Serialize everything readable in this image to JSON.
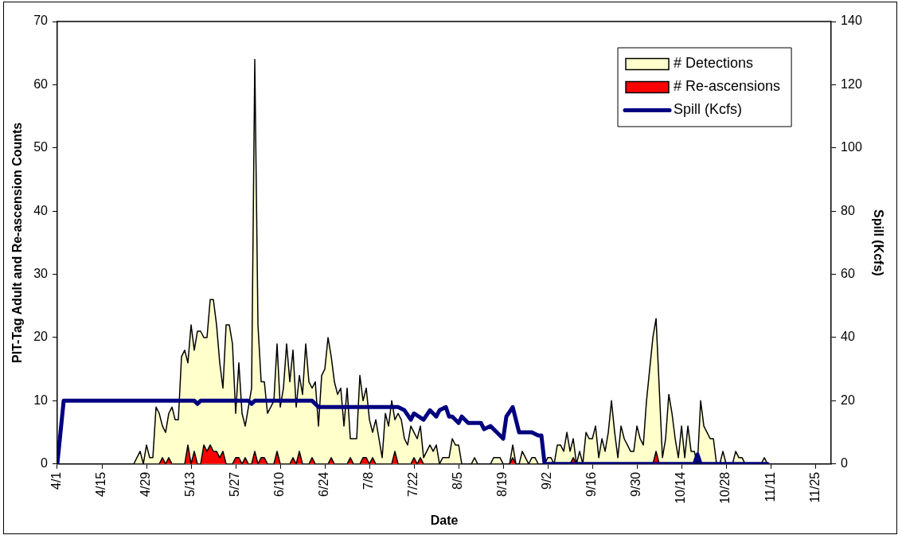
{
  "chart_data": {
    "type": "area",
    "xlabel": "Date",
    "ylabel": "PIT-Tag Adult and Re-ascension Counts",
    "y2label": "Spill (Kcfs)",
    "legend": "top right",
    "xlim": [
      "--04-01",
      "--11-30"
    ],
    "xticks": [
      {
        "value": "--04-01",
        "label": "4/1"
      },
      {
        "value": "--04-15",
        "label": "4/15"
      },
      {
        "value": "--04-29",
        "label": "4/29"
      },
      {
        "value": "--05-13",
        "label": "5/13"
      },
      {
        "value": "--05-27",
        "label": "5/27"
      },
      {
        "value": "--06-10",
        "label": "6/10"
      },
      {
        "value": "--06-24",
        "label": "6/24"
      },
      {
        "value": "--07-08",
        "label": "7/8"
      },
      {
        "value": "--07-22",
        "label": "7/22"
      },
      {
        "value": "--08-05",
        "label": "8/5"
      },
      {
        "value": "--08-19",
        "label": "8/19"
      },
      {
        "value": "--09-02",
        "label": "9/2"
      },
      {
        "value": "--09-16",
        "label": "9/16"
      },
      {
        "value": "--09-30",
        "label": "9/30"
      },
      {
        "value": "--10-14",
        "label": "10/14"
      },
      {
        "value": "--10-28",
        "label": "10/28"
      },
      {
        "value": "--11-11",
        "label": "11/11"
      },
      {
        "value": "--11-25",
        "label": "11/25"
      }
    ],
    "ylim": [
      0,
      70
    ],
    "yticks": [
      0,
      10,
      20,
      30,
      40,
      50,
      60,
      70
    ],
    "y2lim": [
      0,
      140
    ],
    "y2ticks": [
      0,
      20,
      40,
      60,
      80,
      100,
      120,
      140
    ],
    "series": [
      {
        "name": "# Detections",
        "color": "#ffffcc",
        "x": [
          "--04-01",
          "--04-25",
          "--04-27",
          "--04-28",
          "--04-29",
          "--04-30",
          "--05-01",
          "--05-02",
          "--05-03",
          "--05-04",
          "--05-05",
          "--05-06",
          "--05-07",
          "--05-08",
          "--05-09",
          "--05-10",
          "--05-11",
          "--05-12",
          "--05-13",
          "--05-14",
          "--05-15",
          "--05-16",
          "--05-17",
          "--05-18",
          "--05-19",
          "--05-20",
          "--05-21",
          "--05-22",
          "--05-23",
          "--05-24",
          "--05-25",
          "--05-26",
          "--05-27",
          "--05-28",
          "--05-29",
          "--05-30",
          "--05-31",
          "--06-01",
          "--06-02",
          "--06-03",
          "--06-04",
          "--06-05",
          "--06-06",
          "--06-07",
          "--06-08",
          "--06-09",
          "--06-10",
          "--06-11",
          "--06-12",
          "--06-13",
          "--06-14",
          "--06-15",
          "--06-16",
          "--06-17",
          "--06-18",
          "--06-19",
          "--06-20",
          "--06-21",
          "--06-22",
          "--06-23",
          "--06-24",
          "--06-25",
          "--06-26",
          "--06-27",
          "--06-28",
          "--06-29",
          "--06-30",
          "--07-01",
          "--07-02",
          "--07-03",
          "--07-04",
          "--07-05",
          "--07-06",
          "--07-07",
          "--07-08",
          "--07-09",
          "--07-10",
          "--07-11",
          "--07-12",
          "--07-13",
          "--07-14",
          "--07-15",
          "--07-16",
          "--07-17",
          "--07-18",
          "--07-19",
          "--07-20",
          "--07-21",
          "--07-22",
          "--07-23",
          "--07-24",
          "--07-25",
          "--07-26",
          "--07-27",
          "--07-28",
          "--07-29",
          "--07-30",
          "--07-31",
          "--08-01",
          "--08-02",
          "--08-03",
          "--08-04",
          "--08-05",
          "--08-06",
          "--08-09",
          "--08-10",
          "--08-11",
          "--08-15",
          "--08-16",
          "--08-17",
          "--08-18",
          "--08-19",
          "--08-21",
          "--08-22",
          "--08-23",
          "--08-24",
          "--08-25",
          "--08-26",
          "--08-27",
          "--08-28",
          "--08-29",
          "--08-30",
          "--09-01",
          "--09-02",
          "--09-03",
          "--09-04",
          "--09-05",
          "--09-06",
          "--09-07",
          "--09-08",
          "--09-09",
          "--09-10",
          "--09-11",
          "--09-12",
          "--09-13",
          "--09-14",
          "--09-15",
          "--09-16",
          "--09-17",
          "--09-18",
          "--09-19",
          "--09-20",
          "--09-21",
          "--09-22",
          "--09-23",
          "--09-24",
          "--09-25",
          "--09-26",
          "--09-27",
          "--09-28",
          "--09-29",
          "--09-30",
          "--10-01",
          "--10-02",
          "--10-03",
          "--10-04",
          "--10-05",
          "--10-06",
          "--10-07",
          "--10-08",
          "--10-09",
          "--10-10",
          "--10-11",
          "--10-12",
          "--10-13",
          "--10-14",
          "--10-15",
          "--10-16",
          "--10-17",
          "--10-18",
          "--10-19",
          "--10-20",
          "--10-21",
          "--10-22",
          "--10-23",
          "--10-24",
          "--10-25",
          "--10-26",
          "--10-27",
          "--10-28",
          "--10-30",
          "--10-31",
          "--11-01",
          "--11-02",
          "--11-03",
          "--11-08",
          "--11-09",
          "--11-10"
        ],
        "values": [
          0,
          0,
          2,
          0,
          3,
          1,
          1,
          9,
          8,
          6,
          5,
          8,
          9,
          7,
          7,
          17,
          18,
          16,
          22,
          18,
          21,
          21,
          20,
          20,
          26,
          26,
          22,
          16,
          12,
          22,
          22,
          19,
          8,
          16,
          8,
          6,
          9,
          12,
          64,
          22,
          13,
          13,
          8,
          9,
          10,
          19,
          9,
          12,
          19,
          13,
          18,
          9,
          14,
          11,
          19,
          13,
          12,
          13,
          6,
          14,
          15,
          20,
          17,
          13,
          11,
          12,
          6,
          12,
          4,
          4,
          4,
          14,
          10,
          12,
          7,
          5,
          7,
          4,
          1,
          8,
          6,
          10,
          7,
          8,
          7,
          4,
          3,
          6,
          5,
          4,
          6,
          1,
          2,
          3,
          2,
          3,
          0,
          1,
          1,
          1,
          4,
          3,
          3,
          0,
          0,
          1,
          0,
          0,
          1,
          1,
          1,
          0,
          0,
          3,
          0,
          0,
          2,
          1,
          0,
          1,
          1,
          0,
          0,
          1,
          1,
          0,
          3,
          3,
          2,
          5,
          2,
          4,
          0,
          2,
          0,
          5,
          4,
          4,
          6,
          1,
          4,
          2,
          5,
          10,
          5,
          1,
          6,
          4,
          3,
          2,
          2,
          6,
          4,
          3,
          10,
          15,
          20,
          23,
          12,
          1,
          4,
          11,
          8,
          4,
          1,
          6,
          1,
          6,
          2,
          2,
          0,
          10,
          6,
          5,
          4,
          4,
          0,
          0,
          2,
          0,
          0,
          2,
          1,
          1,
          0,
          0,
          1,
          0
        ]
      },
      {
        "name": "# Re-ascensions",
        "color": "#ff0000",
        "x": [
          "--04-01",
          "--05-03",
          "--05-04",
          "--05-05",
          "--05-06",
          "--05-07",
          "--05-11",
          "--05-12",
          "--05-13",
          "--05-14",
          "--05-15",
          "--05-16",
          "--05-17",
          "--05-18",
          "--05-19",
          "--05-20",
          "--05-21",
          "--05-22",
          "--05-23",
          "--05-24",
          "--05-26",
          "--05-27",
          "--05-28",
          "--05-29",
          "--05-30",
          "--05-31",
          "--06-01",
          "--06-02",
          "--06-03",
          "--06-04",
          "--06-05",
          "--06-06",
          "--06-08",
          "--06-09",
          "--06-10",
          "--06-13",
          "--06-14",
          "--06-15",
          "--06-16",
          "--06-17",
          "--06-19",
          "--06-20",
          "--06-21",
          "--06-25",
          "--06-26",
          "--06-27",
          "--07-01",
          "--07-02",
          "--07-03",
          "--07-05",
          "--07-06",
          "--07-07",
          "--07-08",
          "--07-09",
          "--07-10",
          "--07-15",
          "--07-16",
          "--07-17",
          "--07-21",
          "--07-22",
          "--07-23",
          "--07-24",
          "--07-25",
          "--08-21",
          "--08-22",
          "--08-23",
          "--09-09",
          "--09-10",
          "--09-11",
          "--10-05",
          "--10-06",
          "--10-07",
          "--11-10"
        ],
        "values": [
          0,
          0,
          1,
          0,
          1,
          0,
          0,
          3,
          0,
          2,
          0,
          0,
          3,
          2,
          3,
          2,
          2,
          1,
          2,
          0,
          0,
          1,
          1,
          0,
          1,
          0,
          0,
          2,
          0,
          1,
          1,
          0,
          0,
          2,
          0,
          0,
          1,
          0,
          2,
          0,
          0,
          1,
          0,
          0,
          1,
          0,
          0,
          1,
          0,
          0,
          1,
          1,
          0,
          1,
          0,
          0,
          2,
          0,
          0,
          1,
          0,
          1,
          0,
          0,
          1,
          0,
          0,
          1,
          0,
          0,
          2,
          0,
          0
        ]
      },
      {
        "name": "Spill (Kcfs)",
        "type": "line",
        "axis": "y2",
        "color": "#000080",
        "x": [
          "--04-01",
          "--04-03",
          "--05-14",
          "--05-15",
          "--05-16",
          "--05-31",
          "--06-01",
          "--06-02",
          "--06-20",
          "--06-22",
          "--07-17",
          "--07-19",
          "--07-21",
          "--07-22",
          "--07-25",
          "--07-27",
          "--07-29",
          "--07-30",
          "--08-01",
          "--08-02",
          "--08-03",
          "--08-05",
          "--08-06",
          "--08-08",
          "--08-12",
          "--08-13",
          "--08-15",
          "--08-17",
          "--08-19",
          "--08-20",
          "--08-22",
          "--08-24",
          "--08-28",
          "--08-30",
          "--08-31",
          "--09-01",
          "--10-18",
          "--10-19",
          "--10-20",
          "--11-10"
        ],
        "values": [
          0,
          20,
          20,
          19,
          20,
          20,
          19,
          20,
          20,
          18,
          18,
          17,
          14,
          16,
          14,
          17,
          15,
          17,
          18,
          15,
          15,
          13,
          15,
          13,
          13,
          11,
          12,
          10,
          8,
          15,
          18,
          10,
          10,
          9,
          9,
          0,
          0,
          3,
          0,
          0
        ]
      }
    ]
  }
}
